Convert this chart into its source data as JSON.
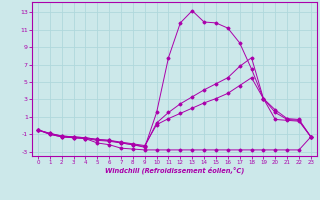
{
  "xlabel": "Windchill (Refroidissement éolien,°C)",
  "xlim": [
    -0.5,
    23.5
  ],
  "ylim": [
    -3.5,
    14.2
  ],
  "xticks": [
    0,
    1,
    2,
    3,
    4,
    5,
    6,
    7,
    8,
    9,
    10,
    11,
    12,
    13,
    14,
    15,
    16,
    17,
    18,
    19,
    20,
    21,
    22,
    23
  ],
  "yticks": [
    -3,
    -1,
    1,
    3,
    5,
    7,
    9,
    11,
    13
  ],
  "background_color": "#cce8ea",
  "grid_color": "#b0d8dc",
  "line_color": "#aa00aa",
  "lines": [
    {
      "x": [
        0,
        1,
        2,
        3,
        4,
        5,
        6,
        7,
        8,
        9,
        10,
        11,
        12,
        13,
        14,
        15,
        16,
        17,
        18,
        19,
        20,
        21,
        22,
        23
      ],
      "y": [
        -0.5,
        -1.0,
        -1.3,
        -1.4,
        -1.5,
        -2.0,
        -2.2,
        -2.6,
        -2.7,
        -2.8,
        -2.8,
        -2.8,
        -2.8,
        -2.8,
        -2.8,
        -2.8,
        -2.8,
        -2.8,
        -2.8,
        -2.8,
        -2.8,
        -2.8,
        -2.8,
        -1.3
      ]
    },
    {
      "x": [
        0,
        1,
        2,
        3,
        4,
        5,
        6,
        7,
        8,
        9,
        10,
        11,
        12,
        13,
        14,
        15,
        16,
        17,
        18,
        19,
        20,
        21,
        22,
        23
      ],
      "y": [
        -0.5,
        -1.0,
        -1.3,
        -1.4,
        -1.5,
        -1.7,
        -1.8,
        -2.0,
        -2.2,
        -2.5,
        1.5,
        7.8,
        11.8,
        13.2,
        11.9,
        11.8,
        11.2,
        9.5,
        6.5,
        3.1,
        0.7,
        0.6,
        0.5,
        -1.3
      ]
    },
    {
      "x": [
        0,
        1,
        2,
        3,
        4,
        5,
        6,
        7,
        8,
        9,
        10,
        11,
        12,
        13,
        14,
        15,
        16,
        17,
        18,
        19,
        20,
        21,
        22,
        23
      ],
      "y": [
        -0.5,
        -0.9,
        -1.2,
        -1.3,
        -1.4,
        -1.6,
        -1.7,
        -2.0,
        -2.2,
        -2.4,
        0.3,
        1.5,
        2.5,
        3.3,
        4.1,
        4.8,
        5.5,
        6.8,
        7.8,
        3.1,
        1.8,
        0.8,
        0.7,
        -1.3
      ]
    },
    {
      "x": [
        0,
        1,
        2,
        3,
        4,
        5,
        6,
        7,
        8,
        9,
        10,
        11,
        12,
        13,
        14,
        15,
        16,
        17,
        18,
        19,
        20,
        21,
        22,
        23
      ],
      "y": [
        -0.5,
        -0.9,
        -1.2,
        -1.3,
        -1.4,
        -1.6,
        -1.7,
        -1.9,
        -2.1,
        -2.3,
        0.1,
        0.8,
        1.4,
        2.0,
        2.6,
        3.1,
        3.7,
        4.6,
        5.5,
        3.1,
        1.5,
        0.7,
        0.6,
        -1.3
      ]
    }
  ]
}
